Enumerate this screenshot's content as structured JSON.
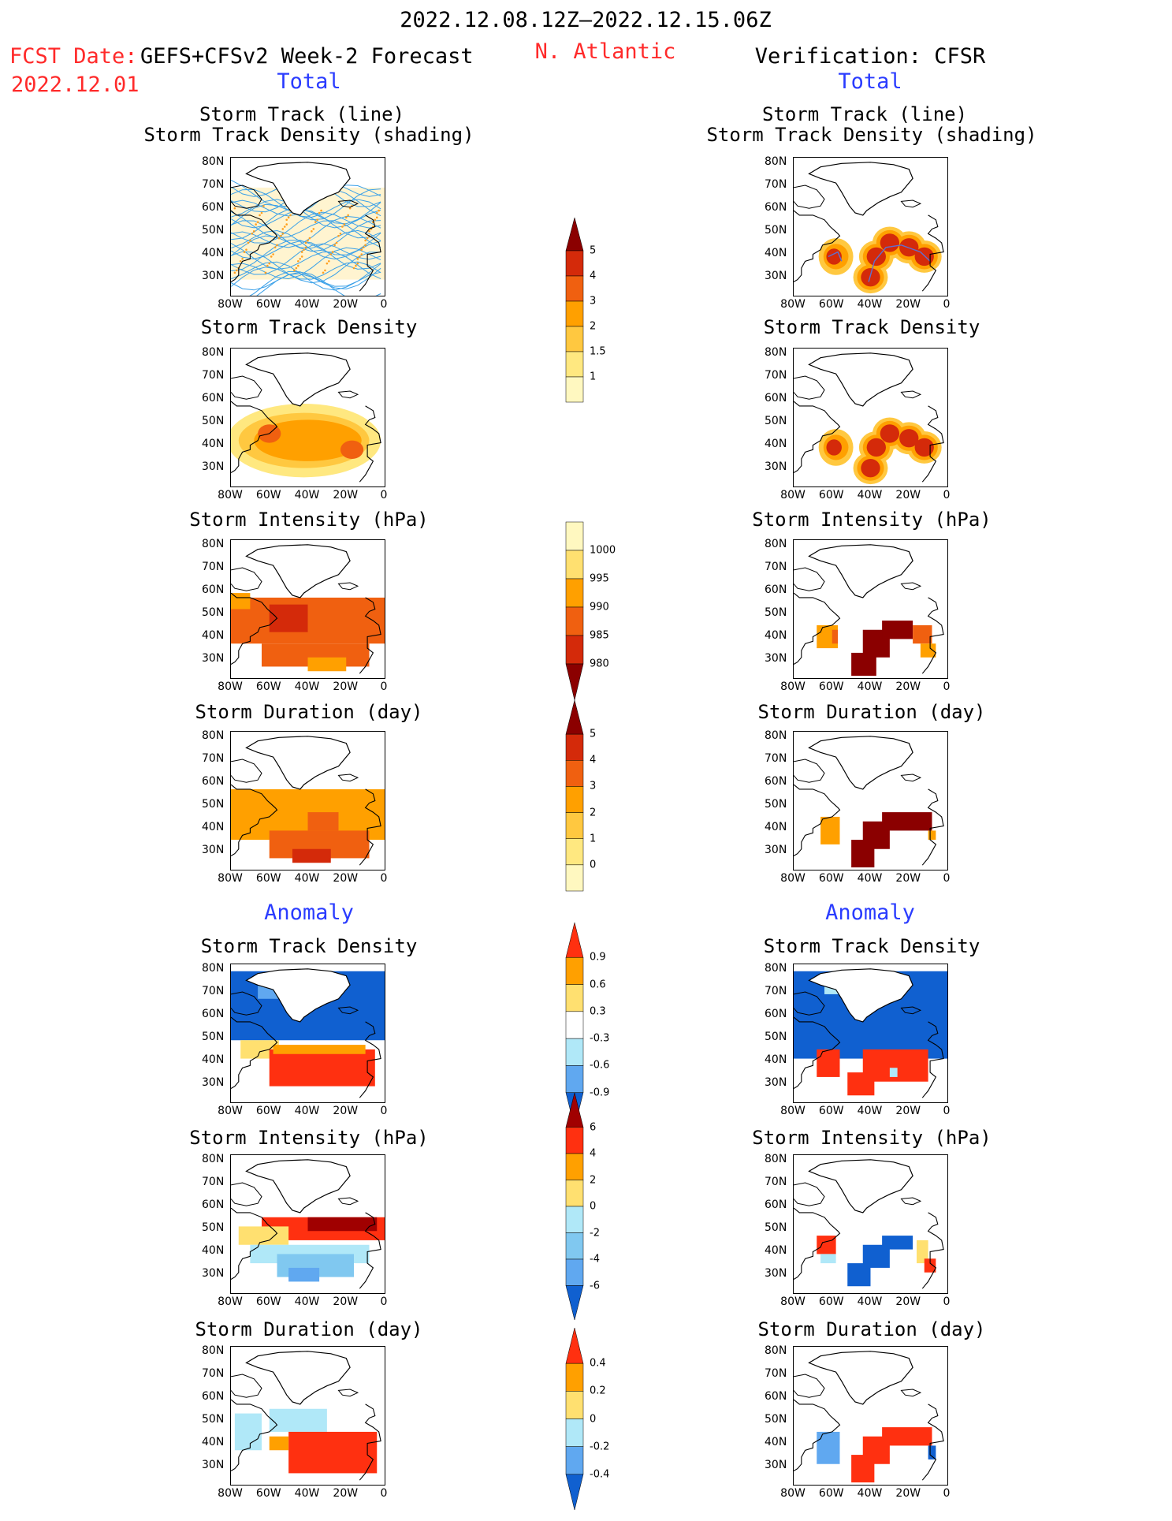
{
  "header": {
    "period": "2022.12.08.12Z–2022.12.15.06Z",
    "fcst_date_label": "FCST Date:",
    "fcst_date": "2022.12.01",
    "model": "GEFS+CFSv2 Week-2 Forecast",
    "region": "N. Atlantic",
    "verification": "Verification: CFSR",
    "left_section_total": "Total",
    "right_section_total": "Total",
    "left_section_anomaly": "Anomaly",
    "right_section_anomaly": "Anomaly"
  },
  "panel_titles": {
    "track_line": "Storm Track (line)",
    "track_density_shading": "Storm Track Density (shading)",
    "track_density": "Storm Track Density",
    "intensity": "Storm Intensity (hPa)",
    "duration": "Storm Duration (day)"
  },
  "axes": {
    "lat_ticks": [
      "80N",
      "70N",
      "60N",
      "50N",
      "40N",
      "30N"
    ],
    "lon_ticks": [
      "80W",
      "60W",
      "40W",
      "20W",
      "0"
    ]
  },
  "colorbars": {
    "density": {
      "labels": [
        "5",
        "4",
        "3",
        "2",
        "1.5",
        "1"
      ],
      "colors": [
        "#8b0000",
        "#d42a0a",
        "#f06010",
        "#ffa000",
        "#ffc840",
        "#ffe880",
        "#fff8c0"
      ]
    },
    "intensity": {
      "labels": [
        "1000",
        "995",
        "990",
        "985",
        "980"
      ],
      "colors": [
        "#fff8c0",
        "#ffe070",
        "#ffa000",
        "#f06010",
        "#d42a0a",
        "#8b0000"
      ]
    },
    "duration": {
      "labels": [
        "5",
        "4",
        "3",
        "2",
        "1",
        "0"
      ],
      "colors": [
        "#8b0000",
        "#d42a0a",
        "#f06010",
        "#ffa000",
        "#ffc840",
        "#ffe880",
        "#fff8c0"
      ]
    },
    "anom_density": {
      "labels": [
        "0.9",
        "0.6",
        "0.3",
        "-0.3",
        "-0.6",
        "-0.9"
      ],
      "colors": [
        "#ff3010",
        "#ffa000",
        "#ffe070",
        "#ffffff",
        "#b0e8f8",
        "#60a8f0",
        "#1060d0"
      ]
    },
    "anom_intensity": {
      "labels": [
        "6",
        "4",
        "2",
        "0",
        "-2",
        "-4",
        "-6"
      ],
      "colors": [
        "#a00000",
        "#ff3010",
        "#ffa000",
        "#ffe070",
        "#b0e8f8",
        "#80c8f0",
        "#60a8f0",
        "#1060d0"
      ]
    },
    "anom_duration": {
      "labels": [
        "0.4",
        "0.2",
        "0",
        "-0.2",
        "-0.4"
      ],
      "colors": [
        "#ff3010",
        "#ffa000",
        "#ffe070",
        "#b0e8f8",
        "#60a8f0",
        "#1060d0"
      ]
    }
  },
  "palette": {
    "track_line": "#3aa0e8",
    "track_dot": "#ffa020",
    "coast": "#000000",
    "text_red": "#ff2a2a",
    "text_blue": "#2a3cff"
  }
}
